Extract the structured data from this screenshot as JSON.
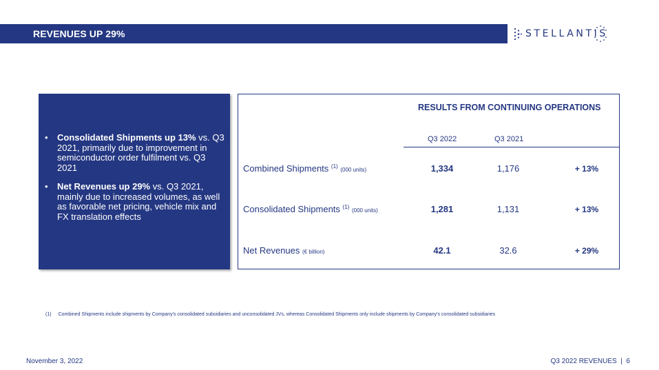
{
  "header": {
    "title": "REVENUES UP 29%",
    "logo_text": "STELLANTIS"
  },
  "left_panel": {
    "bullets": [
      {
        "bold": "Consolidated Shipments up 13%",
        "text": " vs. Q3 2021, primarily due to improvement in semiconductor order fulfilment vs. Q3 2021"
      },
      {
        "bold": "Net Revenues up 29%",
        "text": " vs. Q3 2021, mainly due to increased volumes, as well as favorable net pricing, vehicle mix and FX translation effects"
      }
    ]
  },
  "table": {
    "title": "RESULTS FROM CONTINUING OPERATIONS",
    "columns": [
      "Q3 2022",
      "Q3 2021"
    ],
    "rows": [
      {
        "label": "Combined Shipments",
        "note": "(1)",
        "unit": "(000 units)",
        "q3_2022": "1,334",
        "q3_2021": "1,176",
        "change": "+ 13%"
      },
      {
        "label": "Consolidated Shipments",
        "note": "(1)",
        "unit": "(000 units)",
        "q3_2022": "1,281",
        "q3_2021": "1,131",
        "change": "+ 13%"
      },
      {
        "label": "Net Revenues",
        "note": "",
        "unit": "(€ billion)",
        "q3_2022": "42.1",
        "q3_2021": "32.6",
        "change": "+ 29%"
      }
    ]
  },
  "footnote": {
    "num": "(1)",
    "text": "Combined Shipments include shipments by Company's consolidated subsidiaries and unconsolidated JVs, whereas Consolidated Shipments only include shipments by Company's consolidated subsidiaries"
  },
  "footer": {
    "date": "November 3, 2022",
    "right": "Q3 2022 REVENUES  |  6"
  },
  "colors": {
    "brand_blue": "#243782",
    "white": "#ffffff"
  }
}
